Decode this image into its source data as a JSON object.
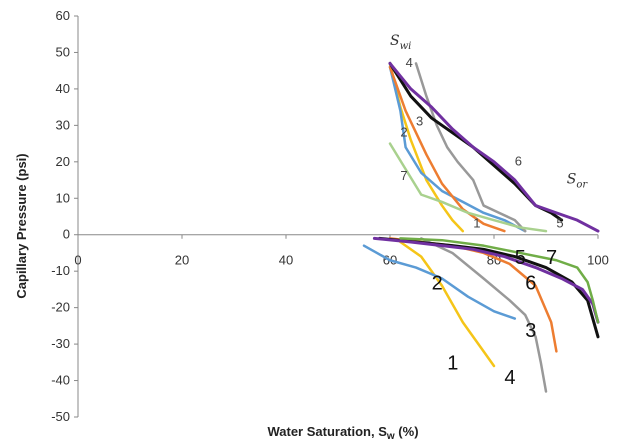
{
  "chart_data": {
    "type": "line",
    "xlabel": "Water Saturation, S",
    "xlabel_sub": "w",
    "xlabel_unit": " (%)",
    "ylabel": "Capillary Pressure (psi)",
    "xlim": [
      0,
      100
    ],
    "ylim": [
      -50,
      60
    ],
    "x_ticks": [
      0,
      20,
      40,
      60,
      80,
      100
    ],
    "y_ticks": [
      -50,
      -40,
      -30,
      -20,
      -10,
      0,
      10,
      20,
      30,
      40,
      50,
      60
    ],
    "grid": false,
    "annotations": [
      {
        "text": "S",
        "sub": "wi",
        "x": 60,
        "y": 52
      },
      {
        "text": "S",
        "sub": "or",
        "x": 94,
        "y": 14
      }
    ],
    "series": [
      {
        "name": "1",
        "color": "#f5c518",
        "drainage": [
          [
            60,
            47
          ],
          [
            62,
            35
          ],
          [
            64,
            26
          ],
          [
            67,
            15
          ],
          [
            70,
            8
          ],
          [
            72,
            4
          ],
          [
            74,
            1
          ]
        ],
        "imbibition": [
          [
            62,
            -2
          ],
          [
            66,
            -6
          ],
          [
            70,
            -14
          ],
          [
            74,
            -24
          ],
          [
            78,
            -32
          ],
          [
            80,
            -36
          ]
        ]
      },
      {
        "name": "2",
        "color": "#5b9bd5",
        "drainage": [
          [
            60,
            46
          ],
          [
            62,
            34
          ],
          [
            63,
            24
          ],
          [
            66,
            17
          ],
          [
            70,
            12
          ],
          [
            74,
            9
          ],
          [
            78,
            6
          ],
          [
            82,
            4
          ],
          [
            86,
            1
          ]
        ],
        "imbibition": [
          [
            55,
            -3
          ],
          [
            60,
            -7
          ],
          [
            65,
            -9
          ],
          [
            70,
            -12
          ],
          [
            75,
            -17
          ],
          [
            80,
            -21
          ],
          [
            84,
            -23
          ]
        ]
      },
      {
        "name": "3",
        "color": "#ed7d31",
        "drainage": [
          [
            60,
            46
          ],
          [
            63,
            34
          ],
          [
            67,
            22
          ],
          [
            70,
            14
          ],
          [
            74,
            7
          ],
          [
            78,
            3
          ],
          [
            82,
            1
          ]
        ],
        "imbibition": [
          [
            60,
            -1
          ],
          [
            66,
            -2
          ],
          [
            72,
            -3
          ],
          [
            78,
            -5
          ],
          [
            83,
            -8
          ],
          [
            88,
            -14
          ],
          [
            91,
            -24
          ],
          [
            92,
            -32
          ]
        ]
      },
      {
        "name": "4",
        "color": "#999999",
        "drainage": [
          [
            65,
            47
          ],
          [
            67,
            38
          ],
          [
            69,
            30
          ],
          [
            71,
            24
          ],
          [
            73,
            20
          ],
          [
            76,
            15
          ],
          [
            78,
            8
          ],
          [
            81,
            6
          ],
          [
            84,
            4
          ],
          [
            86,
            1
          ]
        ],
        "imbibition": [
          [
            66,
            -1
          ],
          [
            72,
            -5
          ],
          [
            78,
            -12
          ],
          [
            83,
            -18
          ],
          [
            86,
            -22
          ],
          [
            88,
            -28
          ],
          [
            89,
            -35
          ],
          [
            90,
            -43
          ]
        ]
      },
      {
        "name": "5",
        "color": "#111111",
        "drainage": [
          [
            60,
            47
          ],
          [
            64,
            38
          ],
          [
            68,
            32
          ],
          [
            72,
            28
          ],
          [
            76,
            24
          ],
          [
            80,
            19
          ],
          [
            84,
            14
          ],
          [
            88,
            8
          ],
          [
            91,
            6
          ],
          [
            93,
            4
          ]
        ],
        "imbibition": [
          [
            58,
            -1
          ],
          [
            65,
            -2
          ],
          [
            72,
            -3
          ],
          [
            78,
            -4
          ],
          [
            84,
            -6
          ],
          [
            90,
            -9
          ],
          [
            95,
            -13
          ],
          [
            98,
            -18
          ],
          [
            100,
            -28
          ]
        ]
      },
      {
        "name": "6",
        "color": "#7030a0",
        "drainage": [
          [
            60,
            47
          ],
          [
            64,
            40
          ],
          [
            68,
            35
          ],
          [
            72,
            29
          ],
          [
            76,
            24
          ],
          [
            80,
            20
          ],
          [
            84,
            15
          ],
          [
            88,
            8
          ],
          [
            92,
            6
          ],
          [
            96,
            4
          ],
          [
            100,
            1
          ]
        ],
        "imbibition": [
          [
            57,
            -1
          ],
          [
            64,
            -2
          ],
          [
            70,
            -3
          ],
          [
            76,
            -4
          ],
          [
            82,
            -6
          ],
          [
            88,
            -9
          ],
          [
            93,
            -12
          ],
          [
            97,
            -15
          ],
          [
            99,
            -19
          ],
          [
            100,
            -24
          ]
        ]
      },
      {
        "name": "7",
        "color": "#a9d18e",
        "drainage": [
          [
            60,
            25
          ],
          [
            63,
            18
          ],
          [
            66,
            11
          ],
          [
            70,
            9
          ],
          [
            75,
            6
          ],
          [
            80,
            4
          ],
          [
            85,
            2
          ],
          [
            90,
            1
          ]
        ],
        "imbibition": []
      },
      {
        "name": "",
        "color": "#70ad47",
        "drainage": [],
        "imbibition": [
          [
            62,
            -1
          ],
          [
            70,
            -1.5
          ],
          [
            78,
            -3
          ],
          [
            85,
            -5
          ],
          [
            92,
            -7
          ],
          [
            96,
            -9
          ],
          [
            98,
            -13
          ],
          [
            99,
            -18
          ],
          [
            100,
            -24
          ]
        ]
      }
    ],
    "curve_labels": [
      {
        "text": "4",
        "x": 63,
        "y": 46,
        "size": "small"
      },
      {
        "text": "3",
        "x": 65,
        "y": 30,
        "size": "small"
      },
      {
        "text": "2",
        "x": 62,
        "y": 27,
        "size": "small"
      },
      {
        "text": "7",
        "x": 62,
        "y": 15,
        "size": "small"
      },
      {
        "text": "6",
        "x": 84,
        "y": 19,
        "size": "small"
      },
      {
        "text": "1",
        "x": 76,
        "y": 2,
        "size": "small"
      },
      {
        "text": "5",
        "x": 92,
        "y": 2,
        "size": "small"
      },
      {
        "text": "5",
        "x": 84,
        "y": -8,
        "size": "big"
      },
      {
        "text": "7",
        "x": 90,
        "y": -8,
        "size": "big"
      },
      {
        "text": "2",
        "x": 68,
        "y": -15,
        "size": "big"
      },
      {
        "text": "6",
        "x": 86,
        "y": -15,
        "size": "big"
      },
      {
        "text": "3",
        "x": 86,
        "y": -28,
        "size": "big"
      },
      {
        "text": "1",
        "x": 71,
        "y": -37,
        "size": "big"
      },
      {
        "text": "4",
        "x": 82,
        "y": -41,
        "size": "big"
      }
    ]
  }
}
